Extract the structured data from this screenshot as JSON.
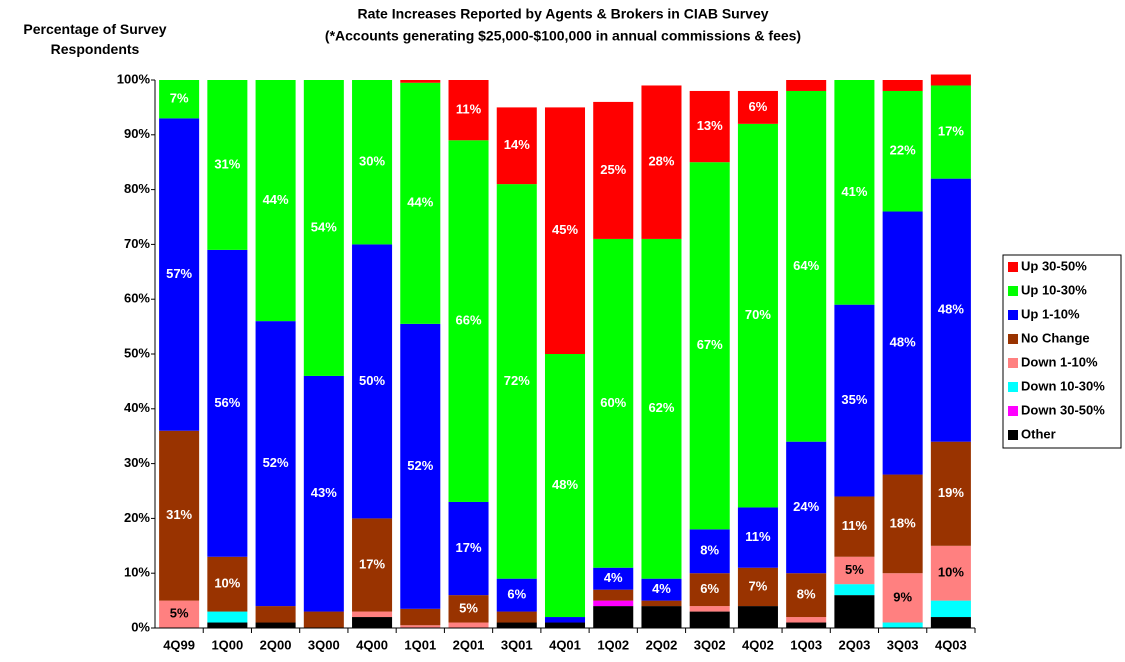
{
  "chart_data": {
    "type": "stacked_bar",
    "title": "Rate Increases Reported by Agents & Brokers in CIAB Survey",
    "subtitle": "(*Accounts generating $25,000-$100,000 in annual commissions & fees)",
    "y_label": "Percentage of Survey Respondents",
    "categories": [
      "4Q99",
      "1Q00",
      "2Q00",
      "3Q00",
      "4Q00",
      "1Q01",
      "2Q01",
      "3Q01",
      "4Q01",
      "1Q02",
      "2Q02",
      "3Q02",
      "4Q02",
      "1Q03",
      "2Q03",
      "3Q03",
      "4Q03"
    ],
    "ylim": [
      0,
      100
    ],
    "yticks": [
      {
        "value": 0,
        "label": "0%"
      },
      {
        "value": 10,
        "label": "10%"
      },
      {
        "value": 20,
        "label": "20%"
      },
      {
        "value": 30,
        "label": "30%"
      },
      {
        "value": 40,
        "label": "40%"
      },
      {
        "value": 50,
        "label": "50%"
      },
      {
        "value": 60,
        "label": "60%"
      },
      {
        "value": 70,
        "label": "70%"
      },
      {
        "value": 80,
        "label": "80%"
      },
      {
        "value": 90,
        "label": "90%"
      },
      {
        "value": 100,
        "label": "100%"
      }
    ],
    "legend": "right",
    "series": [
      {
        "name": "Other",
        "color": "#000000",
        "values": [
          0,
          1,
          1,
          0,
          2,
          0,
          0,
          1,
          1,
          4,
          4,
          3,
          4,
          1,
          6,
          0,
          2
        ]
      },
      {
        "name": "Down 30-50%",
        "color": "#ff00ff",
        "values": [
          0,
          0,
          0,
          0,
          0,
          0,
          0,
          0,
          0,
          1,
          0,
          0,
          0,
          0,
          0,
          0,
          0
        ]
      },
      {
        "name": "Down 10-30%",
        "color": "#00ffff",
        "values": [
          0,
          2,
          0,
          0,
          0,
          0,
          0,
          0,
          0,
          0,
          0,
          0,
          0,
          0,
          2,
          1,
          3
        ]
      },
      {
        "name": "Down 1-10%",
        "color": "#ff8080",
        "values": [
          5,
          0,
          0,
          0,
          1,
          0.5,
          1,
          0,
          0,
          0,
          0,
          1,
          0,
          1,
          5,
          9,
          10
        ],
        "value_labels": [
          "5%",
          null,
          null,
          null,
          null,
          null,
          null,
          null,
          null,
          null,
          null,
          null,
          null,
          null,
          "5%",
          "9%",
          "10%"
        ]
      },
      {
        "name": "No Change",
        "color": "#993300",
        "values": [
          31,
          10,
          3,
          3,
          17,
          3,
          5,
          2,
          0,
          2,
          1,
          6,
          7,
          8,
          11,
          18,
          19
        ],
        "value_labels": [
          "31%",
          "10%",
          null,
          null,
          "17%",
          null,
          "5%",
          null,
          null,
          null,
          null,
          "6%",
          "7%",
          "8%",
          "11%",
          "18%",
          "19%"
        ]
      },
      {
        "name": "Up 1-10%",
        "color": "#0000ff",
        "values": [
          57,
          56,
          52,
          43,
          50,
          52,
          17,
          6,
          1,
          4,
          4,
          8,
          11,
          24,
          35,
          48,
          48
        ],
        "value_labels": [
          "57%",
          "56%",
          "52%",
          "43%",
          "50%",
          "52%",
          "17%",
          "6%",
          null,
          "4%",
          "4%",
          "8%",
          "11%",
          "24%",
          "35%",
          "48%",
          "48%"
        ]
      },
      {
        "name": "Up 10-30%",
        "color": "#00ff00",
        "values": [
          7,
          31,
          44,
          54,
          30,
          44,
          66,
          72,
          48,
          60,
          62,
          67,
          70,
          64,
          41,
          22,
          17
        ],
        "value_labels": [
          "7%",
          "31%",
          "44%",
          "54%",
          "30%",
          "44%",
          "66%",
          "72%",
          "48%",
          "60%",
          "62%",
          "67%",
          "70%",
          "64%",
          "41%",
          "22%",
          "17%"
        ]
      },
      {
        "name": "Up 30-50%",
        "color": "#ff0000",
        "values": [
          0,
          0,
          0,
          0,
          0,
          0.5,
          11,
          14,
          45,
          25,
          28,
          13,
          6,
          2,
          0,
          2,
          2
        ],
        "value_labels": [
          null,
          null,
          null,
          null,
          null,
          null,
          "11%",
          "14%",
          "45%",
          "25%",
          "28%",
          "13%",
          "6%",
          null,
          null,
          null,
          null
        ]
      }
    ]
  }
}
